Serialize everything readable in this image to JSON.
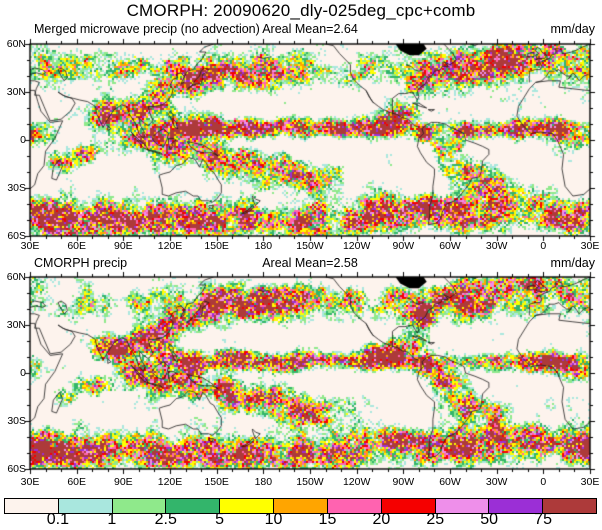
{
  "title": "CMORPH: 20090620_dly-025deg_cpc+comb",
  "panels": [
    {
      "label": "Merged microwave precip (no advection)",
      "areal_mean_label": "Areal Mean=2.64",
      "units_label": "mm/day"
    },
    {
      "label": "CMORPH precip",
      "areal_mean_label": "Areal Mean=2.58",
      "units_label": "mm/day"
    }
  ],
  "axes": {
    "lat_labels": [
      "60N",
      "30N",
      "0",
      "30S",
      "60S"
    ],
    "lon_labels": [
      "30E",
      "60E",
      "90E",
      "120E",
      "150E",
      "180",
      "150W",
      "120W",
      "90W",
      "60W",
      "30W",
      "0",
      "30E"
    ]
  },
  "colorbar": {
    "labels": [
      "0.1",
      "1",
      "2.5",
      "5",
      "10",
      "15",
      "20",
      "25",
      "50",
      "75"
    ]
  },
  "chart_data": {
    "type": "heatmap",
    "title": "CMORPH: 20090620_dly-025deg_cpc+comb",
    "panels": [
      {
        "title": "Merged microwave precip (no advection)",
        "areal_mean": 2.64,
        "units": "mm/day"
      },
      {
        "title": "CMORPH precip",
        "areal_mean": 2.58,
        "units": "mm/day"
      }
    ],
    "x_axis": {
      "ticks": [
        "30E",
        "60E",
        "90E",
        "120E",
        "150E",
        "180",
        "150W",
        "120W",
        "90W",
        "60W",
        "30W",
        "0",
        "30E"
      ],
      "minor_tick_deg": 10,
      "major_tick_deg": 30,
      "range": "30E eastward around the globe to 30E"
    },
    "y_axis": {
      "ticks": [
        "60N",
        "30N",
        "0",
        "30S",
        "60S"
      ],
      "minor_tick_deg": 10,
      "major_tick_deg": 30,
      "range": "60S to 60N"
    },
    "grid": false,
    "legend_position": "bottom",
    "colorbar": {
      "units": "mm/day",
      "levels": [
        0.1,
        1,
        2.5,
        5,
        10,
        15,
        20,
        25,
        50,
        75
      ],
      "colors": [
        "#FDF3ED",
        "#A9E7DE",
        "#8FE98B",
        "#33B56B",
        "#FFFF00",
        "#FFA500",
        "#FF63B0",
        "#F50000",
        "#EE8FEA",
        "#9B2FD6",
        "#AD3A3A"
      ]
    }
  }
}
